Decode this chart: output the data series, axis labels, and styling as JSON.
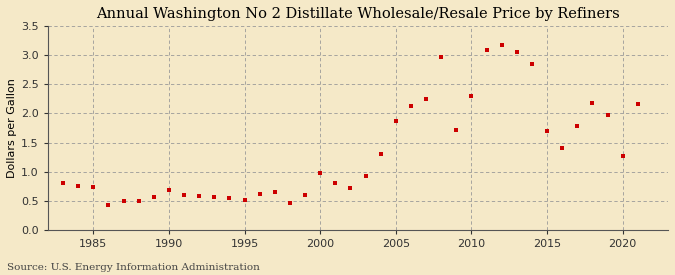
{
  "title": "Annual Washington No 2 Distillate Wholesale/Resale Price by Refiners",
  "ylabel": "Dollars per Gallon",
  "source": "Source: U.S. Energy Information Administration",
  "background_color": "#f5e9c8",
  "plot_bg_color": "#f5e9c8",
  "marker_color": "#cc0000",
  "years": [
    1983,
    1984,
    1985,
    1986,
    1987,
    1988,
    1989,
    1990,
    1991,
    1992,
    1993,
    1994,
    1995,
    1996,
    1997,
    1998,
    1999,
    2000,
    2001,
    2002,
    2003,
    2004,
    2005,
    2006,
    2007,
    2008,
    2009,
    2010,
    2011,
    2012,
    2013,
    2014,
    2015,
    2016,
    2017,
    2018,
    2019,
    2020,
    2021
  ],
  "values": [
    0.8,
    0.76,
    0.73,
    0.42,
    0.5,
    0.49,
    0.57,
    0.68,
    0.6,
    0.58,
    0.57,
    0.55,
    0.52,
    0.62,
    0.65,
    0.46,
    0.6,
    0.97,
    0.8,
    0.72,
    0.93,
    1.3,
    1.87,
    2.13,
    2.25,
    2.98,
    1.72,
    2.3,
    3.1,
    3.17,
    3.05,
    2.85,
    1.7,
    1.4,
    1.78,
    2.18,
    1.98,
    1.27,
    2.17
  ],
  "xlim": [
    1982,
    2023
  ],
  "ylim": [
    0.0,
    3.5
  ],
  "yticks": [
    0.0,
    0.5,
    1.0,
    1.5,
    2.0,
    2.5,
    3.0,
    3.5
  ],
  "xticks": [
    1985,
    1990,
    1995,
    2000,
    2005,
    2010,
    2015,
    2020
  ],
  "grid_color": "#999999",
  "spine_color": "#555555",
  "title_fontsize": 10.5,
  "axis_label_fontsize": 8,
  "tick_fontsize": 8,
  "source_fontsize": 7.5
}
